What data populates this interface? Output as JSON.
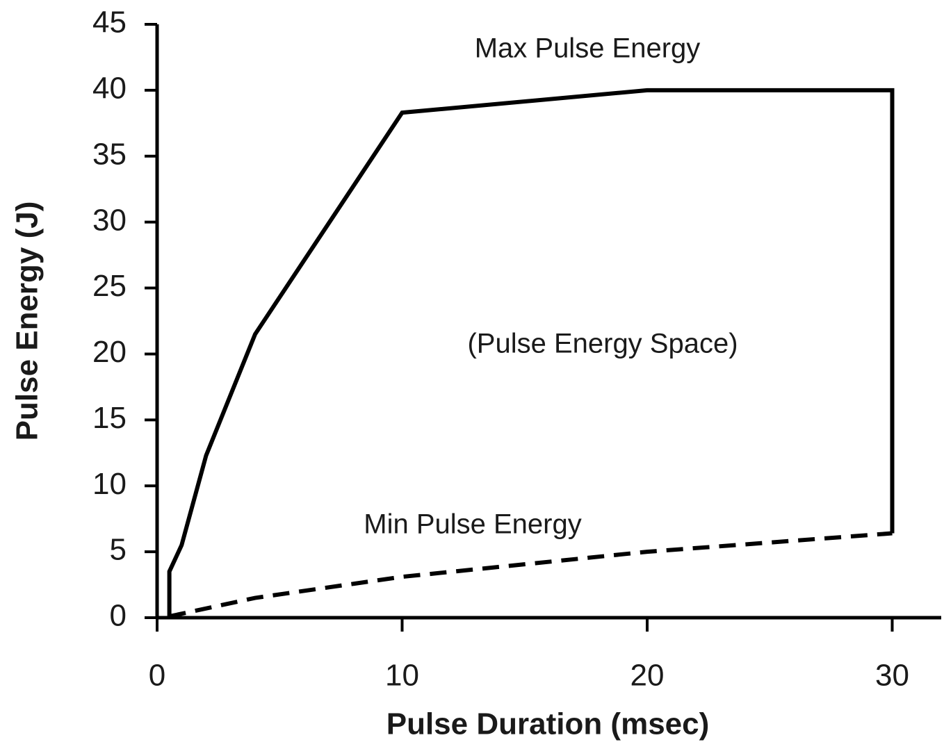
{
  "chart_data": {
    "type": "line",
    "x_label": "Pulse Duration (msec)",
    "y_label": "Pulse Energy (J)",
    "xlim": [
      0,
      32
    ],
    "ylim": [
      0,
      45
    ],
    "xticks": [
      0,
      10,
      20,
      30
    ],
    "yticks": [
      0,
      5,
      10,
      15,
      20,
      25,
      30,
      35,
      40,
      45
    ],
    "series": [
      {
        "color": "#000000",
        "linestyle": "solid",
        "x": [
          0.5,
          0.5,
          1,
          2,
          4,
          10,
          20,
          30,
          30
        ],
        "values": [
          0,
          3.5,
          5.5,
          12.3,
          21.5,
          38.3,
          40,
          40,
          6.4
        ]
      },
      {
        "color": "#000000",
        "linestyle": "dashed",
        "x": [
          0.5,
          4,
          10,
          20,
          30
        ],
        "values": [
          0.1,
          1.5,
          3.1,
          5,
          6.4
        ]
      }
    ],
    "annotations": [
      "Max Pulse Energy",
      "(Pulse Energy Space)",
      "Min Pulse Energy"
    ]
  }
}
